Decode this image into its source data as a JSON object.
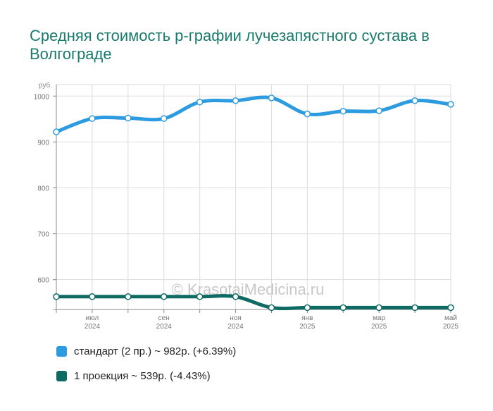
{
  "title": "Средняя стоимость р-графии лучезапястного сустава в Волгограде",
  "watermark": "© KrasotaiMedicina.ru",
  "chart_data": {
    "type": "line",
    "ylabel": "руб.",
    "ylim": [
      535,
      1025
    ],
    "y_ticks": [
      600,
      700,
      800,
      900,
      1000
    ],
    "x_ticks": [
      {
        "month": "июл",
        "year": "2024",
        "index": 1
      },
      {
        "month": "сен",
        "year": "2024",
        "index": 3
      },
      {
        "month": "ноя",
        "year": "2024",
        "index": 5
      },
      {
        "month": "янв",
        "year": "2025",
        "index": 7
      },
      {
        "month": "мар",
        "year": "2025",
        "index": 9
      },
      {
        "month": "май",
        "year": "2025",
        "index": 11
      }
    ],
    "x": [
      "2024-06",
      "2024-07",
      "2024-08",
      "2024-09",
      "2024-10",
      "2024-11",
      "2024-12",
      "2025-01",
      "2025-02",
      "2025-03",
      "2025-04",
      "2025-05"
    ],
    "grid": true,
    "series": [
      {
        "name": "стандарт (2 пр.)",
        "color": "#2d9be0",
        "values": [
          922,
          951,
          952,
          951,
          987,
          990,
          996,
          961,
          967,
          968,
          990,
          982
        ]
      },
      {
        "name": "1 проекция",
        "color": "#0e6b63",
        "values": [
          563,
          563,
          563,
          563,
          563,
          563,
          539,
          539,
          539,
          539,
          539,
          539
        ]
      }
    ]
  },
  "legend": [
    {
      "label": "стандарт (2 пр.) ~ 982р. (+6.39%)",
      "color": "#2d9be0"
    },
    {
      "label": "1 проекция ~ 539р. (-4.43%)",
      "color": "#0e6b63"
    }
  ]
}
